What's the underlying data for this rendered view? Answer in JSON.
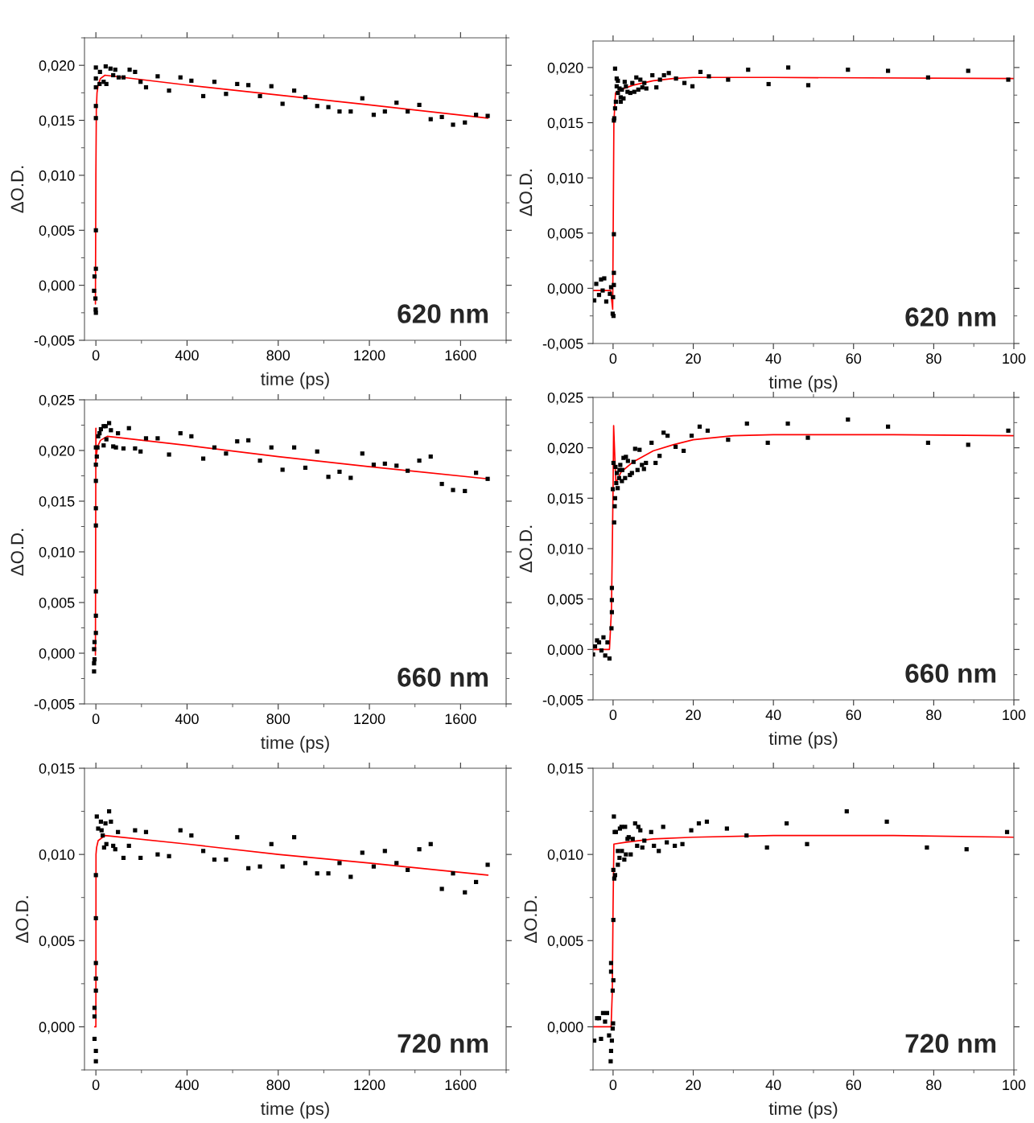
{
  "chart_data": [
    {
      "type": "scatter",
      "xlabel": "time (ps)",
      "ylabel": "ΔO.D.",
      "annotations": [
        "620 nm"
      ],
      "marker": "square",
      "grid": false,
      "legend": false,
      "xlim": [
        -50,
        1800
      ],
      "ylim": [
        -0.005,
        0.0225
      ],
      "xticks": [
        0,
        400,
        800,
        1200,
        1600
      ],
      "yticks": [
        {
          "value": -0.005,
          "label": "-0,005"
        },
        {
          "value": 0.0,
          "label": "0,000"
        },
        {
          "value": 0.005,
          "label": "0,005"
        },
        {
          "value": 0.01,
          "label": "0,010"
        },
        {
          "value": 0.015,
          "label": "0,015"
        },
        {
          "value": 0.02,
          "label": "0,020"
        }
      ],
      "series": [
        {
          "color": "#000000",
          "x": [
            0,
            0,
            0,
            0,
            0,
            0,
            0,
            -6,
            -8,
            -2,
            -1,
            0,
            16,
            18,
            34,
            43,
            46,
            64,
            76,
            85,
            100,
            121,
            148,
            172,
            196,
            220,
            271,
            321,
            371,
            419,
            471,
            520,
            571,
            620,
            669,
            720,
            770,
            819,
            870,
            919,
            971,
            1020,
            1069,
            1118,
            1169,
            1219,
            1268,
            1319,
            1368,
            1419,
            1469,
            1518,
            1567,
            1619,
            1668,
            1719
          ],
          "values": [
            0.0198,
            0.0188,
            0.018,
            0.0163,
            0.0152,
            0.005,
            0.0015,
            0.0008,
            -0.0005,
            -0.0012,
            -0.0022,
            -0.0025,
            0.0183,
            0.0194,
            0.0185,
            0.0199,
            0.0183,
            0.0197,
            0.0191,
            0.0196,
            0.0189,
            0.0189,
            0.0196,
            0.0194,
            0.0185,
            0.018,
            0.019,
            0.0177,
            0.0189,
            0.0186,
            0.0172,
            0.0185,
            0.0174,
            0.0183,
            0.0182,
            0.0172,
            0.0181,
            0.0165,
            0.0177,
            0.0171,
            0.0163,
            0.0162,
            0.0158,
            0.0158,
            0.017,
            0.0155,
            0.0158,
            0.0166,
            0.0158,
            0.0164,
            0.0151,
            0.0153,
            0.0146,
            0.0148,
            0.0155,
            0.0154
          ]
        },
        {
          "type": "line",
          "marker": "none",
          "color": "#ff0000",
          "x": [
            -2,
            0,
            2,
            5,
            10,
            20,
            40,
            400,
            800,
            1200,
            1720
          ],
          "values": [
            -0.0017,
            0.01,
            0.016,
            0.0175,
            0.0182,
            0.0188,
            0.0191,
            0.0182,
            0.0173,
            0.0164,
            0.0152
          ]
        }
      ]
    },
    {
      "type": "scatter",
      "xlabel": "time (ps)",
      "ylabel": "ΔO.D.",
      "annotations": [
        "620 nm"
      ],
      "marker": "square",
      "grid": false,
      "legend": false,
      "xlim": [
        -5,
        100
      ],
      "ylim": [
        -0.005,
        0.0224
      ],
      "xticks": [
        0,
        20,
        40,
        60,
        80,
        100
      ],
      "yticks": [
        {
          "value": -0.005,
          "label": "-0,005"
        },
        {
          "value": 0.0,
          "label": "0,000"
        },
        {
          "value": 0.005,
          "label": "0,005"
        },
        {
          "value": 0.01,
          "label": "0,010"
        },
        {
          "value": 0.015,
          "label": "0,015"
        },
        {
          "value": 0.02,
          "label": "0,020"
        }
      ],
      "series": [
        {
          "color": "#000000",
          "x": [
            -4.7,
            -4.2,
            -3.5,
            -3.0,
            -2.6,
            -2.2,
            -1.7,
            -0.8,
            -0.5,
            -0.1,
            0.1,
            0,
            0.2,
            0.2,
            0.2,
            0.2,
            0.3,
            0.5,
            0.5,
            0.7,
            0.9,
            0.9,
            1.2,
            1.2,
            1.6,
            1.9,
            1.9,
            2.2,
            2.6,
            2.9,
            3.2,
            3.6,
            4.3,
            4.8,
            5.3,
            5.8,
            6.3,
            6.8,
            7.3,
            7.8,
            8.3,
            9.8,
            10.8,
            11.7,
            12.7,
            13.9,
            15.7,
            17.8,
            19.8,
            21.8,
            23.9,
            28.7,
            33.7,
            38.8,
            43.7,
            48.7,
            58.6,
            68.6,
            78.6,
            88.6,
            98.6
          ],
          "values": [
            -0.0011,
            0.0004,
            -0.0006,
            0.0008,
            -0.0002,
            0.0009,
            -0.0012,
            -0.0005,
            0.0001,
            -0.0023,
            -0.0025,
            -0.0008,
            0.0003,
            0.0014,
            0.0049,
            0.0152,
            0.0154,
            0.0163,
            0.0199,
            0.0169,
            0.019,
            0.0183,
            0.0177,
            0.0188,
            0.0181,
            0.0173,
            0.0169,
            0.018,
            0.0172,
            0.0187,
            0.0183,
            0.0178,
            0.0177,
            0.0186,
            0.0178,
            0.0191,
            0.018,
            0.0189,
            0.0182,
            0.0186,
            0.0181,
            0.0193,
            0.0182,
            0.0189,
            0.0193,
            0.0195,
            0.019,
            0.0186,
            0.0183,
            0.0196,
            0.0192,
            0.0189,
            0.0198,
            0.0185,
            0.02,
            0.0184,
            0.0198,
            0.0197,
            0.0191,
            0.0197,
            0.0189
          ]
        },
        {
          "type": "line",
          "marker": "none",
          "color": "#ff0000",
          "x": [
            -5,
            -0.6,
            -0.1,
            0.2,
            0.6,
            2,
            5,
            10,
            15,
            20,
            40,
            100
          ],
          "values": [
            -0.0002,
            -0.0002,
            -0.0019,
            0.015,
            0.0177,
            0.018,
            0.0184,
            0.0188,
            0.019,
            0.0191,
            0.0191,
            0.019
          ]
        }
      ]
    },
    {
      "type": "scatter",
      "xlabel": "time (ps)",
      "ylabel": "ΔO.D.",
      "annotations": [
        "660 nm"
      ],
      "marker": "square",
      "grid": false,
      "legend": false,
      "xlim": [
        -50,
        1800
      ],
      "ylim": [
        -0.005,
        0.025
      ],
      "xticks": [
        0,
        400,
        800,
        1200,
        1600
      ],
      "yticks": [
        {
          "value": -0.005,
          "label": "-0,005"
        },
        {
          "value": 0.0,
          "label": "0,000"
        },
        {
          "value": 0.005,
          "label": "0,005"
        },
        {
          "value": 0.01,
          "label": "0,010"
        },
        {
          "value": 0.015,
          "label": "0,015"
        },
        {
          "value": 0.02,
          "label": "0,020"
        },
        {
          "value": 0.025,
          "label": "0,025"
        }
      ],
      "series": [
        {
          "color": "#000000",
          "x": [
            0,
            0,
            0,
            0,
            0,
            0,
            0,
            0,
            -6,
            -8,
            -6,
            -8,
            -8,
            4,
            7,
            10,
            16,
            22,
            34,
            34,
            43,
            46,
            58,
            66,
            76,
            88,
            97,
            121,
            145,
            172,
            196,
            220,
            271,
            321,
            371,
            419,
            471,
            520,
            571,
            620,
            669,
            720,
            770,
            819,
            870,
            919,
            971,
            1020,
            1069,
            1118,
            1169,
            1219,
            1268,
            1319,
            1368,
            1419,
            1469,
            1518,
            1567,
            1619,
            1668,
            1719
          ],
          "values": [
            0.0203,
            0.0186,
            0.017,
            0.0143,
            0.0126,
            0.0061,
            0.0037,
            0.002,
            0.0011,
            0.0004,
            -0.0006,
            -0.001,
            -0.0018,
            0.0194,
            0.0203,
            0.0214,
            0.0217,
            0.0221,
            0.0224,
            0.0205,
            0.0224,
            0.0211,
            0.0227,
            0.022,
            0.0204,
            0.0203,
            0.0217,
            0.0202,
            0.0222,
            0.0202,
            0.0199,
            0.0212,
            0.0212,
            0.0196,
            0.0217,
            0.0214,
            0.0192,
            0.0203,
            0.0197,
            0.0209,
            0.021,
            0.019,
            0.0203,
            0.0181,
            0.0203,
            0.0183,
            0.0199,
            0.0174,
            0.0179,
            0.0173,
            0.0197,
            0.0186,
            0.0187,
            0.0185,
            0.018,
            0.019,
            0.0194,
            0.0167,
            0.0161,
            0.016,
            0.0178,
            0.0172
          ]
        },
        {
          "type": "line",
          "marker": "none",
          "color": "#ff0000",
          "x": [
            -2,
            0,
            1,
            2,
            5,
            10,
            20,
            50,
            400,
            800,
            1200,
            1720
          ],
          "values": [
            -0.0002,
            0.0222,
            0.019,
            0.0195,
            0.02,
            0.0205,
            0.021,
            0.0214,
            0.0205,
            0.0194,
            0.0184,
            0.0172
          ]
        }
      ]
    },
    {
      "type": "scatter",
      "xlabel": "time (ps)",
      "ylabel": "ΔO.D.",
      "annotations": [
        "660 nm"
      ],
      "marker": "square",
      "grid": false,
      "legend": false,
      "xlim": [
        -5,
        100
      ],
      "ylim": [
        -0.005,
        0.025
      ],
      "xticks": [
        0,
        20,
        40,
        60,
        80,
        100
      ],
      "yticks": [
        {
          "value": -0.005,
          "label": "-0,005"
        },
        {
          "value": 0.0,
          "label": "0,000"
        },
        {
          "value": 0.005,
          "label": "0,005"
        },
        {
          "value": 0.01,
          "label": "0,010"
        },
        {
          "value": 0.015,
          "label": "0,015"
        },
        {
          "value": 0.02,
          "label": "0,020"
        },
        {
          "value": 0.025,
          "label": "0,025"
        }
      ],
      "series": [
        {
          "color": "#000000",
          "x": [
            -5.0,
            -4.5,
            -4.0,
            -3.5,
            -2.9,
            -2.4,
            -1.96,
            -1.4,
            -0.9,
            -0.4,
            -0.3,
            -0.3,
            -0.3,
            -0.07,
            0.27,
            0.4,
            0.5,
            0.1,
            0.6,
            0.8,
            0.95,
            1.15,
            1.5,
            1.6,
            1.8,
            2.2,
            2.3,
            2.6,
            3.0,
            3.2,
            3.7,
            4.2,
            4.7,
            5.1,
            5.5,
            6.1,
            6.6,
            7.2,
            7.7,
            8.2,
            9.6,
            10.6,
            11.6,
            12.6,
            13.6,
            15.6,
            17.6,
            19.6,
            21.6,
            23.6,
            28.7,
            33.4,
            38.6,
            43.6,
            48.6,
            58.6,
            68.6,
            78.6,
            88.6,
            98.6
          ],
          "values": [
            -0.0005,
            0.0003,
            0.0009,
            0.0007,
            -0.0001,
            0.0012,
            -0.0006,
            0.0007,
            -0.0009,
            0.0021,
            0.0037,
            0.0049,
            0.0061,
            0.0159,
            0.0126,
            0.0142,
            0.015,
            0.0185,
            0.0181,
            0.0165,
            0.0175,
            0.016,
            0.017,
            0.0178,
            0.0183,
            0.0167,
            0.0178,
            0.019,
            0.017,
            0.0191,
            0.0187,
            0.0173,
            0.0175,
            0.0186,
            0.0199,
            0.0178,
            0.0198,
            0.0183,
            0.0179,
            0.0185,
            0.0205,
            0.0185,
            0.0192,
            0.0215,
            0.0212,
            0.0201,
            0.0197,
            0.0212,
            0.0221,
            0.0217,
            0.0208,
            0.0224,
            0.0205,
            0.0224,
            0.021,
            0.0228,
            0.0221,
            0.0205,
            0.0203,
            0.0217
          ]
        },
        {
          "type": "line",
          "marker": "none",
          "color": "#ff0000",
          "x": [
            -5,
            -0.9,
            -0.4,
            0,
            0.14,
            0.68,
            2,
            5,
            10,
            15,
            20,
            30,
            40,
            70,
            100
          ],
          "values": [
            0.0,
            0.0,
            0.004,
            0.016,
            0.0222,
            0.0165,
            0.0176,
            0.0186,
            0.0197,
            0.0203,
            0.0208,
            0.0212,
            0.0213,
            0.0213,
            0.0212
          ]
        }
      ]
    },
    {
      "type": "scatter",
      "xlabel": "time (ps)",
      "ylabel": "ΔO.D.",
      "annotations": [
        "720 nm"
      ],
      "marker": "square",
      "grid": false,
      "legend": false,
      "xlim": [
        -50,
        1800
      ],
      "ylim": [
        -0.0025,
        0.015
      ],
      "xticks": [
        0,
        400,
        800,
        1200,
        1600
      ],
      "yticks": [
        {
          "value": 0.0,
          "label": "0,000"
        },
        {
          "value": 0.005,
          "label": "0,005"
        },
        {
          "value": 0.01,
          "label": "0,010"
        },
        {
          "value": 0.015,
          "label": "0,015"
        }
      ],
      "series": [
        {
          "color": "#000000",
          "x": [
            0,
            0,
            0,
            0,
            0,
            -6,
            -6,
            -6,
            0,
            0,
            4,
            10,
            22,
            25,
            30,
            36,
            42,
            46,
            58,
            66,
            76,
            85,
            97,
            121,
            145,
            172,
            196,
            220,
            271,
            321,
            371,
            419,
            471,
            520,
            571,
            620,
            669,
            720,
            770,
            819,
            870,
            919,
            971,
            1020,
            1069,
            1118,
            1169,
            1219,
            1268,
            1319,
            1368,
            1419,
            1469,
            1518,
            1567,
            1619,
            1668,
            1719
          ],
          "values": [
            0.0088,
            0.0063,
            0.0037,
            0.0028,
            0.0021,
            0.0011,
            0.0006,
            -0.0007,
            -0.0014,
            -0.002,
            0.0122,
            0.0115,
            0.0119,
            0.0114,
            0.0111,
            0.0104,
            0.0118,
            0.0106,
            0.0125,
            0.0119,
            0.0105,
            0.0103,
            0.0113,
            0.0098,
            0.0105,
            0.0114,
            0.0098,
            0.0113,
            0.01,
            0.0099,
            0.0114,
            0.0111,
            0.0102,
            0.0097,
            0.0097,
            0.011,
            0.0092,
            0.0093,
            0.0106,
            0.0093,
            0.011,
            0.0095,
            0.0089,
            0.0089,
            0.0095,
            0.0087,
            0.0101,
            0.0093,
            0.0102,
            0.0095,
            0.0091,
            0.0103,
            0.0106,
            0.008,
            0.0089,
            0.0078,
            0.0084,
            0.0094
          ]
        },
        {
          "type": "line",
          "marker": "none",
          "color": "#ff0000",
          "x": [
            -5,
            0,
            0.5,
            3,
            10,
            40,
            400,
            800,
            1200,
            1720
          ],
          "values": [
            0.0,
            0.0,
            0.01,
            0.0104,
            0.0108,
            0.0111,
            0.0106,
            0.01,
            0.0095,
            0.0088
          ]
        }
      ]
    },
    {
      "type": "scatter",
      "xlabel": "time (ps)",
      "ylabel": "ΔO.D.",
      "annotations": [
        "720 nm"
      ],
      "marker": "square",
      "grid": false,
      "legend": false,
      "xlim": [
        -5,
        100
      ],
      "ylim": [
        -0.0025,
        0.015
      ],
      "xticks": [
        0,
        20,
        40,
        60,
        80,
        100
      ],
      "yticks": [
        {
          "value": 0.0,
          "label": "0,000"
        },
        {
          "value": 0.005,
          "label": "0,005"
        },
        {
          "value": 0.01,
          "label": "0,010"
        },
        {
          "value": 0.015,
          "label": "0,015"
        }
      ],
      "series": [
        {
          "color": "#000000",
          "x": [
            -4.7,
            -4.0,
            -3.5,
            -3.0,
            -2.5,
            -2.0,
            -1.5,
            -1.0,
            -0.6,
            -0.5,
            -0.3,
            -0.1,
            0,
            -0.5,
            -0.5,
            0.07,
            -0.1,
            0.07,
            0.07,
            0.3,
            0.5,
            0.2,
            0.4,
            0.7,
            1.2,
            1.2,
            1.6,
            1.7,
            2.1,
            2.2,
            2.8,
            3.0,
            3.2,
            3.6,
            3.9,
            4.4,
            4.9,
            5.5,
            6.0,
            6.3,
            6.8,
            7.3,
            7.8,
            9.5,
            10.2,
            11.4,
            12.5,
            13.4,
            15.4,
            17.3,
            19.5,
            21.4,
            23.4,
            28.4,
            33.3,
            38.4,
            43.3,
            48.4,
            58.3,
            68.3,
            78.3,
            88.2,
            98.3
          ],
          "values": [
            -0.0008,
            0.0005,
            0.0005,
            -0.0007,
            0.0008,
            0.0003,
            0.0008,
            -0.0005,
            -0.002,
            -0.0014,
            -0.0008,
            -0.0001,
            0.0002,
            0.0037,
            0.0032,
            0.0027,
            0.0021,
            0.0062,
            0.0091,
            0.0086,
            0.0088,
            0.0122,
            0.0113,
            0.0113,
            0.0094,
            0.0102,
            0.0098,
            0.0115,
            0.0116,
            0.0102,
            0.0097,
            0.0116,
            0.01,
            0.0109,
            0.011,
            0.01,
            0.0109,
            0.0118,
            0.0105,
            0.0116,
            0.0114,
            0.0104,
            0.0108,
            0.0113,
            0.0105,
            0.0102,
            0.0116,
            0.0107,
            0.0105,
            0.0106,
            0.0114,
            0.0118,
            0.0119,
            0.0115,
            0.0111,
            0.0104,
            0.0118,
            0.0106,
            0.0125,
            0.0119,
            0.0104,
            0.0103,
            0.0113
          ]
        },
        {
          "type": "line",
          "marker": "none",
          "color": "#ff0000",
          "x": [
            -5,
            -0.5,
            -0.2,
            0,
            0.2,
            3,
            10,
            20,
            40,
            70,
            100
          ],
          "values": [
            0.0,
            0.0,
            0.002,
            0.007,
            0.0106,
            0.0107,
            0.0109,
            0.011,
            0.0111,
            0.0111,
            0.011
          ]
        }
      ]
    }
  ]
}
